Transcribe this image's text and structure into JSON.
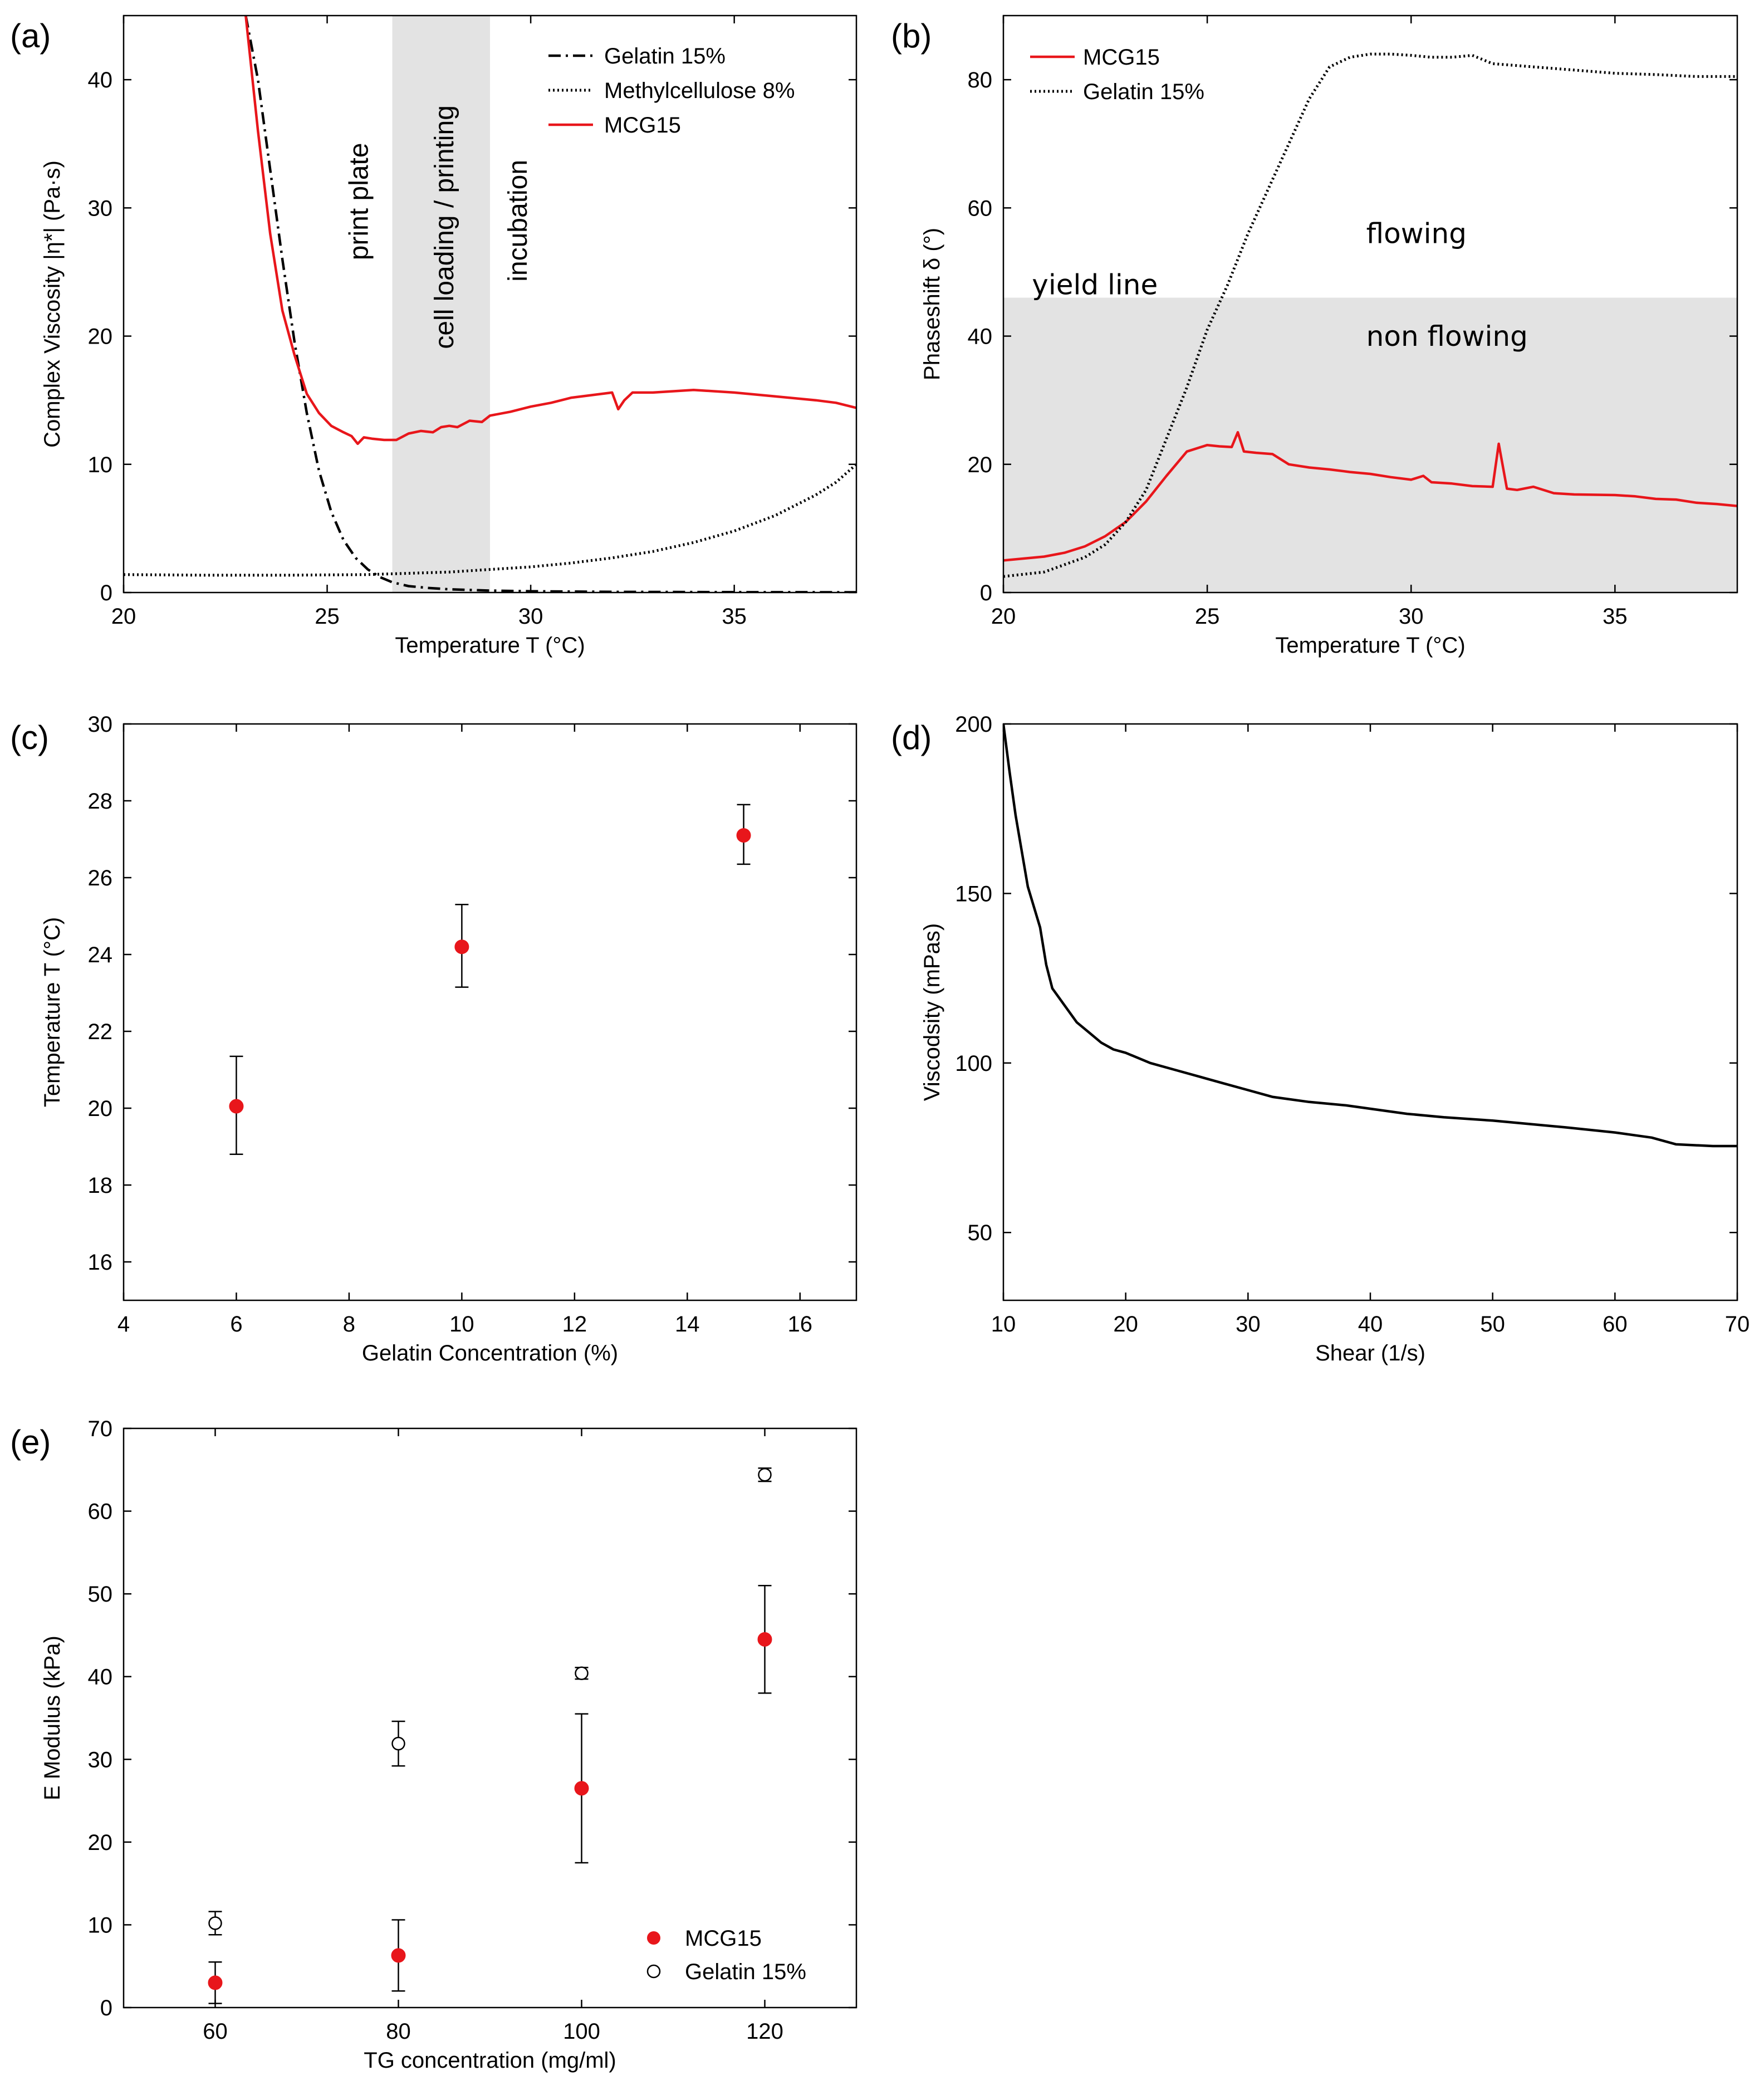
{
  "chart_data": [
    {
      "id": "a",
      "panel_label": "(a)",
      "type": "line",
      "xlabel": "Temperature T (°C)",
      "ylabel": "Complex Viscosity |η*| (Pa·s)",
      "xlim": [
        20,
        38
      ],
      "ylim": [
        0,
        45
      ],
      "xticks": [
        20,
        25,
        30,
        35
      ],
      "yticks": [
        0,
        10,
        20,
        30,
        40
      ],
      "legend_position": "top-right",
      "shaded_band": {
        "x": [
          26.6,
          29
        ]
      },
      "annotations": [
        {
          "text": "print plate",
          "x": 26,
          "y": 30.5
        },
        {
          "text": "cell loading / printing",
          "x": 28.1,
          "y": 28.5
        },
        {
          "text": "incubation",
          "x": 29.9,
          "y": 29
        }
      ],
      "series": [
        {
          "name": "Gelatin 15%",
          "color": "#000000",
          "dash": "dashdot",
          "x": [
            23.0,
            23.3,
            23.6,
            23.9,
            24.2,
            24.5,
            24.8,
            25.1,
            25.4,
            25.7,
            26.0,
            26.3,
            26.6,
            27.0,
            27.5,
            28.0,
            29.0,
            30.0,
            32.0,
            35.0,
            38.0
          ],
          "y": [
            45,
            40,
            33,
            26,
            19.5,
            14,
            9.5,
            6.3,
            4.1,
            2.7,
            1.8,
            1.2,
            0.8,
            0.5,
            0.35,
            0.25,
            0.15,
            0.1,
            0.05,
            0.03,
            0.02
          ]
        },
        {
          "name": "Methylcellulose 8%",
          "color": "#000000",
          "dash": "dotted",
          "x": [
            20,
            22,
            24,
            26,
            28,
            30,
            31,
            32,
            33,
            34,
            35,
            36,
            37,
            37.5,
            38
          ],
          "y": [
            1.4,
            1.35,
            1.35,
            1.4,
            1.6,
            2.0,
            2.3,
            2.7,
            3.2,
            3.9,
            4.8,
            6.0,
            7.6,
            8.6,
            10.0
          ]
        },
        {
          "name": "MCG15",
          "color": "#e8161b",
          "dash": "solid",
          "x": [
            23.0,
            23.3,
            23.6,
            23.9,
            24.2,
            24.5,
            24.8,
            25.1,
            25.4,
            25.6,
            25.75,
            25.9,
            26.1,
            26.4,
            26.7,
            27.0,
            27.3,
            27.6,
            27.8,
            28.0,
            28.2,
            28.5,
            28.8,
            29.0,
            29.5,
            30.0,
            30.5,
            31.0,
            31.5,
            32.0,
            32.15,
            32.3,
            32.5,
            33.0,
            34.0,
            35.0,
            36.0,
            37.0,
            37.5,
            38.0
          ],
          "y": [
            45,
            36,
            28,
            22,
            18.5,
            15.5,
            14,
            13,
            12.5,
            12.2,
            11.6,
            12.1,
            12.0,
            11.9,
            11.9,
            12.4,
            12.6,
            12.5,
            12.9,
            13.0,
            12.9,
            13.4,
            13.3,
            13.8,
            14.1,
            14.5,
            14.8,
            15.2,
            15.4,
            15.6,
            14.3,
            15.0,
            15.6,
            15.6,
            15.8,
            15.6,
            15.3,
            15.0,
            14.8,
            14.4
          ]
        }
      ]
    },
    {
      "id": "b",
      "panel_label": "(b)",
      "type": "line",
      "xlabel": "Temperature T (°C)",
      "ylabel": "Phaseshift δ (°)",
      "xlim": [
        20,
        38
      ],
      "ylim": [
        0,
        90
      ],
      "xticks": [
        20,
        25,
        30,
        35
      ],
      "yticks": [
        0,
        20,
        40,
        60,
        80
      ],
      "legend_position": "top-left",
      "shaded_band": {
        "y": [
          0,
          46
        ]
      },
      "annotations": [
        {
          "text": "yield line",
          "x": 20.7,
          "y": 46.5
        },
        {
          "text": "flowing",
          "x": 28.9,
          "y": 54.5
        },
        {
          "text": "non flowing",
          "x": 28.9,
          "y": 38.5
        }
      ],
      "series": [
        {
          "name": "MCG15",
          "color": "#e8161b",
          "dash": "solid",
          "x": [
            20,
            21,
            21.5,
            22,
            22.5,
            23,
            23.5,
            24,
            24.5,
            25,
            25.3,
            25.6,
            25.75,
            25.9,
            26.2,
            26.6,
            27,
            27.5,
            28,
            28.5,
            29,
            29.5,
            30,
            30.3,
            30.5,
            31,
            31.5,
            32,
            32.15,
            32.35,
            32.6,
            33,
            33.5,
            34,
            35,
            35.5,
            36,
            36.5,
            37,
            37.5,
            38
          ],
          "y": [
            5,
            5.6,
            6.2,
            7.2,
            8.8,
            11,
            14.2,
            18.2,
            22,
            23,
            22.8,
            22.7,
            25,
            22,
            21.8,
            21.6,
            20,
            19.5,
            19.2,
            18.8,
            18.5,
            18,
            17.6,
            18.2,
            17.2,
            17.0,
            16.6,
            16.5,
            23.2,
            16.2,
            16.0,
            16.5,
            15.5,
            15.3,
            15.2,
            15.0,
            14.6,
            14.5,
            14.0,
            13.8,
            13.5
          ]
        },
        {
          "name": "Gelatin 15%",
          "color": "#000000",
          "dash": "dotted",
          "x": [
            20,
            21,
            22,
            22.5,
            23,
            23.5,
            24,
            24.5,
            25,
            25.5,
            26,
            26.5,
            27,
            27.5,
            28,
            28.5,
            29,
            29.5,
            30,
            30.5,
            31,
            31.5,
            32,
            33,
            34,
            35,
            36,
            37,
            37.5,
            38
          ],
          "y": [
            2.5,
            3.2,
            5.5,
            7.5,
            11,
            16,
            24,
            32,
            41,
            48,
            56,
            63,
            70,
            77,
            82,
            83.5,
            84,
            84,
            83.8,
            83.5,
            83.5,
            83.8,
            82.5,
            82,
            81.5,
            81,
            80.8,
            80.5,
            80.5,
            80.5
          ]
        }
      ]
    },
    {
      "id": "c",
      "panel_label": "(c)",
      "type": "scatter",
      "xlabel": "Gelatin Concentration (%)",
      "ylabel": "Temperature T (°C)",
      "xlim": [
        4,
        17
      ],
      "ylim": [
        15,
        30
      ],
      "xticks": [
        4,
        6,
        8,
        10,
        12,
        14,
        16
      ],
      "yticks": [
        16,
        18,
        20,
        22,
        24,
        26,
        28,
        30
      ],
      "series": [
        {
          "name": "MCG15",
          "color": "#e8161b",
          "marker": "filled",
          "x": [
            6,
            10,
            15
          ],
          "y": [
            20.05,
            24.2,
            27.1
          ],
          "err_low": [
            18.8,
            23.15,
            26.35
          ],
          "err_high": [
            21.35,
            25.3,
            27.9
          ]
        }
      ]
    },
    {
      "id": "d",
      "panel_label": "(d)",
      "type": "line",
      "xlabel": "Shear (1/s)",
      "ylabel": "Viscodsity (mPas)",
      "xlim": [
        10,
        70
      ],
      "ylim": [
        30,
        200
      ],
      "xticks": [
        10,
        20,
        30,
        40,
        50,
        60,
        70
      ],
      "yticks": [
        50,
        100,
        150,
        200
      ],
      "series": [
        {
          "name": "Viscosity",
          "color": "#000000",
          "dash": "solid",
          "x": [
            10,
            10.5,
            11,
            12,
            13,
            13.5,
            14,
            15,
            16,
            17,
            18,
            19,
            20,
            22,
            24,
            26,
            28,
            30,
            32,
            35,
            38,
            40,
            43,
            46,
            50,
            53,
            56,
            60,
            63,
            65,
            68,
            70
          ],
          "y": [
            200,
            186,
            173,
            152,
            140,
            129,
            122,
            117,
            112,
            109,
            106,
            104,
            103,
            100,
            98,
            96,
            94,
            92,
            90,
            88.5,
            87.5,
            86.5,
            85,
            84,
            83,
            82,
            81,
            79.5,
            78,
            76,
            75.5,
            75.5
          ]
        }
      ]
    },
    {
      "id": "e",
      "panel_label": "(e)",
      "type": "scatter",
      "xlabel": "TG concentration (mg/ml)",
      "ylabel": "E Modulus (kPa)",
      "xlim": [
        50,
        130
      ],
      "ylim": [
        0,
        70
      ],
      "xticks": [
        60,
        80,
        100,
        120
      ],
      "yticks": [
        0,
        10,
        20,
        30,
        40,
        50,
        60,
        70
      ],
      "legend_position": "bottom-right",
      "series": [
        {
          "name": "MCG15",
          "color": "#e8161b",
          "marker": "filled",
          "x": [
            60,
            80,
            100,
            120
          ],
          "y": [
            3.0,
            6.3,
            26.5,
            44.5
          ],
          "err_low": [
            0.5,
            2.0,
            17.5,
            38.0
          ],
          "err_high": [
            5.5,
            10.6,
            35.5,
            51.0
          ]
        },
        {
          "name": "Gelatin 15%",
          "color": "#000000",
          "marker": "open",
          "x": [
            60,
            80,
            100,
            120
          ],
          "y": [
            10.2,
            31.9,
            40.4,
            64.4
          ],
          "err_low": [
            8.8,
            29.2,
            39.7,
            63.6
          ],
          "err_high": [
            11.6,
            34.6,
            41.1,
            65.2
          ]
        }
      ]
    }
  ]
}
